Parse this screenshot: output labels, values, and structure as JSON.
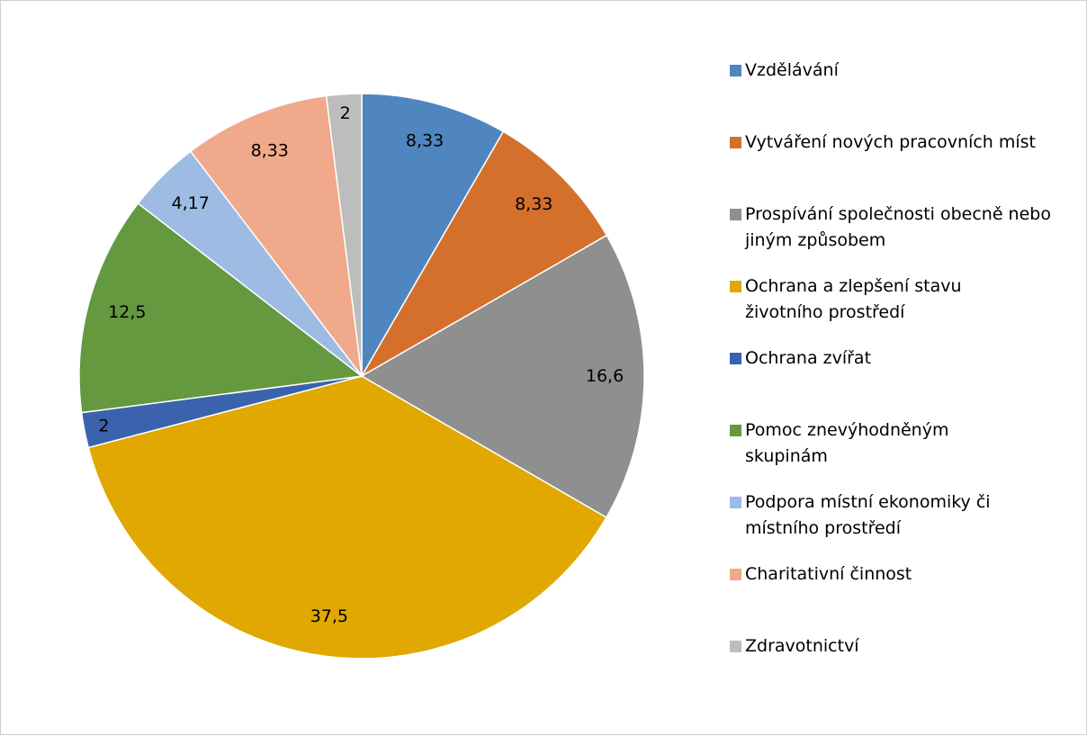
{
  "chart_data": {
    "type": "pie",
    "categories": [
      "Vzdělávání",
      "Vytváření nových pracovních míst",
      "Prospívání společnosti obecně nebo jiným způsobem",
      "Ochrana a zlepšení stavu životního prostředí",
      "Ochrana zvířat",
      "Pomoc znevýhodněným skupinám",
      "Podpora místní ekonomiky či místního prostředí",
      "Charitativní činnost",
      "Zdravotnictví"
    ],
    "values": [
      8.33,
      8.33,
      16.6,
      37.5,
      2,
      12.5,
      4.17,
      8.33,
      2
    ],
    "value_labels": [
      "8,33",
      "8,33",
      "16,6",
      "37,5",
      "2",
      "12,5",
      "4,17",
      "8,33",
      "2"
    ],
    "colors": [
      "#4f86bf",
      "#d4702c",
      "#8f8f8f",
      "#e0a800",
      "#3b63ad",
      "#64993f",
      "#9dbbe3",
      "#f0a98a",
      "#bdbdbd"
    ],
    "legend": "right"
  }
}
